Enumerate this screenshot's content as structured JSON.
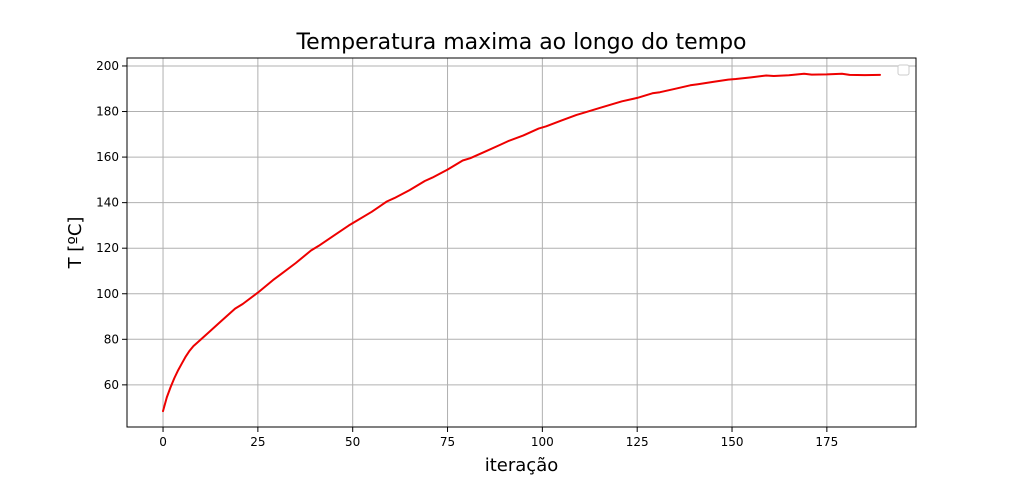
{
  "chart_data": {
    "type": "line",
    "title": "Temperatura maxima ao longo do tempo",
    "xlabel": "iteração",
    "ylabel": "T [ºC]",
    "xlim": [
      -9.5,
      198.5
    ],
    "ylim": [
      41.5,
      203.5
    ],
    "xticks": [
      0,
      25,
      50,
      75,
      100,
      125,
      150,
      175
    ],
    "yticks": [
      60,
      80,
      100,
      120,
      140,
      160,
      180,
      200
    ],
    "grid": true,
    "legend": "top-right",
    "colors": {
      "line": "#ee0000",
      "grid": "#b0b0b0",
      "axes": "#000000"
    },
    "series": [
      {
        "x": [
          0,
          1,
          2,
          3,
          4,
          5,
          6,
          7,
          8,
          9,
          12,
          15,
          19,
          21,
          25,
          29,
          31,
          35,
          39,
          41,
          45,
          49,
          51,
          55,
          59,
          61,
          65,
          69,
          71,
          75,
          79,
          81,
          85,
          89,
          91,
          95,
          99,
          101,
          105,
          109,
          111,
          115,
          119,
          121,
          125,
          129,
          131,
          135,
          139,
          141,
          145,
          149,
          151,
          155,
          159,
          161,
          165,
          169,
          171,
          175,
          179,
          181,
          185,
          189
        ],
        "values": [
          48.5,
          54.5,
          59.0,
          63.0,
          66.5,
          69.5,
          72.5,
          75.0,
          77.0,
          78.5,
          83.0,
          87.5,
          93.5,
          95.5,
          100.5,
          106.0,
          108.5,
          113.5,
          119.0,
          121.0,
          125.5,
          130.0,
          132.0,
          136.0,
          140.5,
          142.0,
          145.5,
          149.5,
          151.0,
          154.5,
          158.5,
          159.5,
          162.5,
          165.5,
          167.0,
          169.5,
          172.5,
          173.5,
          176.0,
          178.5,
          179.5,
          181.5,
          183.5,
          184.5,
          186.0,
          188.0,
          188.5,
          190.0,
          191.5,
          192.0,
          193.0,
          194.0,
          194.3,
          195.0,
          195.8,
          195.6,
          195.9,
          196.6,
          196.2,
          196.3,
          196.6,
          196.1,
          196.0,
          196.1
        ]
      }
    ]
  }
}
